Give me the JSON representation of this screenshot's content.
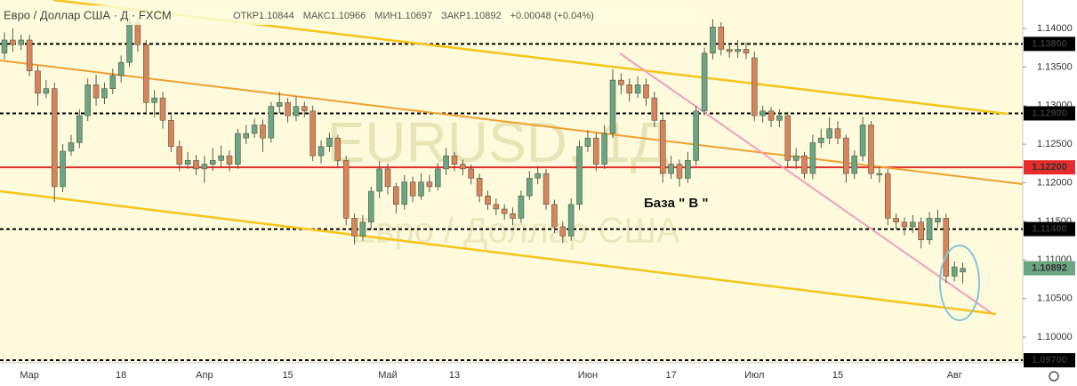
{
  "chart_data": {
    "type": "candlestick",
    "title": "Евро / Доллар США · Д · FXCM",
    "stats": [
      "ОТКР1.10844",
      "МАКС1.10966",
      "МИН1.10697",
      "ЗАКР1.10892",
      "+0.00048 (+0.04%)"
    ],
    "watermark": [
      "EURUSD, 1Д",
      "Евро / Доллар США"
    ],
    "annotation": "База \" В \"",
    "categories": [
      null,
      null,
      null,
      "Мар",
      null,
      null,
      null,
      null,
      null,
      null,
      null,
      null,
      null,
      null,
      "18",
      null,
      null,
      null,
      null,
      null,
      null,
      null,
      null,
      null,
      "Апр",
      null,
      null,
      null,
      null,
      null,
      null,
      null,
      null,
      null,
      "15",
      null,
      null,
      null,
      null,
      null,
      null,
      null,
      null,
      null,
      null,
      null,
      "Май",
      null,
      null,
      null,
      null,
      null,
      null,
      null,
      "13",
      null,
      null,
      null,
      null,
      null,
      null,
      null,
      null,
      null,
      null,
      null,
      null,
      null,
      null,
      null,
      "Июн",
      null,
      null,
      null,
      null,
      null,
      null,
      null,
      null,
      null,
      "17",
      null,
      null,
      null,
      null,
      null,
      null,
      null,
      null,
      null,
      "Июл",
      null,
      null,
      null,
      null,
      null,
      null,
      null,
      null,
      null,
      "15",
      null,
      null,
      null,
      null,
      null,
      null,
      null,
      null,
      null,
      null,
      null,
      null,
      null,
      "Авг",
      null
    ],
    "open": [
      1.1368,
      1.1385,
      1.1379,
      1.1385,
      1.1345,
      1.1316,
      1.1322,
      1.1195,
      1.1241,
      1.1252,
      1.1287,
      1.1327,
      1.131,
      1.1322,
      1.1339,
      1.1356,
      1.1408,
      1.1379,
      1.1304,
      1.131,
      1.1281,
      1.1247,
      1.1224,
      1.1229,
      1.1218,
      1.1224,
      1.1229,
      1.1235,
      1.1224,
      1.1258,
      1.1264,
      1.1275,
      1.1258,
      1.1299,
      1.1304,
      1.1287,
      1.1299,
      1.1293,
      1.1235,
      1.1247,
      1.1258,
      1.1229,
      1.1154,
      1.1131,
      1.1149,
      1.1189,
      1.1218,
      1.1195,
      1.1172,
      1.1201,
      1.1183,
      1.1201,
      1.1195,
      1.1218,
      1.1235,
      1.1224,
      1.1218,
      1.1206,
      1.1183,
      1.1172,
      1.1166,
      1.116,
      1.1154,
      1.1183,
      1.1206,
      1.1212,
      1.1172,
      1.1143,
      1.1131,
      1.1172,
      1.1247,
      1.1258,
      1.1224,
      1.1264,
      1.1333,
      1.1327,
      1.1316,
      1.1327,
      1.131,
      1.1281,
      1.1212,
      1.1224,
      1.1206,
      1.1229,
      1.1293,
      1.1368,
      1.1402,
      1.1373,
      1.137,
      1.1373,
      1.1362,
      1.1287,
      1.1293,
      1.1281,
      1.1287,
      1.1229,
      1.1235,
      1.1212,
      1.1252,
      1.1258,
      1.127,
      1.1258,
      1.1212,
      1.1235,
      1.1275,
      1.121,
      1.1212,
      1.1154,
      1.1149,
      1.1143,
      1.1149,
      1.1126,
      1.1149,
      1.1154,
      1.1079,
      1.10844
    ],
    "high": [
      1.1395,
      1.14,
      1.1392,
      1.1392,
      1.1352,
      1.1333,
      1.133,
      1.125,
      1.1262,
      1.1295,
      1.1335,
      1.134,
      1.133,
      1.1348,
      1.1365,
      1.142,
      1.1415,
      1.1385,
      1.132,
      1.1318,
      1.1288,
      1.1255,
      1.124,
      1.1236,
      1.1235,
      1.1245,
      1.1248,
      1.1242,
      1.127,
      1.1275,
      1.1283,
      1.1282,
      1.1305,
      1.1318,
      1.131,
      1.1312,
      1.1305,
      1.13,
      1.1255,
      1.1265,
      1.1262,
      1.1235,
      1.116,
      1.1158,
      1.1195,
      1.1228,
      1.1225,
      1.12,
      1.121,
      1.1208,
      1.1212,
      1.121,
      1.1226,
      1.1245,
      1.124,
      1.123,
      1.1224,
      1.1212,
      1.119,
      1.118,
      1.1172,
      1.1168,
      1.119,
      1.1215,
      1.1222,
      1.1218,
      1.1178,
      1.115,
      1.118,
      1.1255,
      1.1268,
      1.1265,
      1.1275,
      1.1347,
      1.1342,
      1.1335,
      1.1338,
      1.1335,
      1.1318,
      1.1288,
      1.1235,
      1.123,
      1.124,
      1.13,
      1.1375,
      1.1412,
      1.1408,
      1.138,
      1.1385,
      1.1382,
      1.137,
      1.13,
      1.1298,
      1.1295,
      1.1292,
      1.1245,
      1.124,
      1.1262,
      1.127,
      1.1285,
      1.128,
      1.1262,
      1.1242,
      1.1285,
      1.128,
      1.1222,
      1.1218,
      1.116,
      1.1155,
      1.1158,
      1.1155,
      1.1162,
      1.1165,
      1.116,
      1.1098,
      1.10966
    ],
    "low": [
      1.136,
      1.137,
      1.1372,
      1.1338,
      1.13,
      1.131,
      1.1175,
      1.1188,
      1.1235,
      1.1245,
      1.128,
      1.13,
      1.1302,
      1.1315,
      1.133,
      1.135,
      1.137,
      1.129,
      1.1285,
      1.127,
      1.124,
      1.1215,
      1.1218,
      1.121,
      1.12,
      1.1215,
      1.122,
      1.1215,
      1.1218,
      1.125,
      1.1258,
      1.124,
      1.1252,
      1.129,
      1.1278,
      1.128,
      1.1285,
      1.1228,
      1.1225,
      1.124,
      1.122,
      1.1145,
      1.112,
      1.1125,
      1.114,
      1.118,
      1.1185,
      1.116,
      1.1165,
      1.1175,
      1.1178,
      1.1188,
      1.119,
      1.121,
      1.1215,
      1.121,
      1.1198,
      1.1175,
      1.1165,
      1.1158,
      1.1152,
      1.1145,
      1.1148,
      1.1178,
      1.1198,
      1.1165,
      1.1135,
      1.1122,
      1.1125,
      1.1165,
      1.124,
      1.1215,
      1.1218,
      1.1258,
      1.1315,
      1.1305,
      1.131,
      1.13,
      1.1272,
      1.12,
      1.1205,
      1.1195,
      1.12,
      1.1222,
      1.1288,
      1.136,
      1.1365,
      1.1362,
      1.1362,
      1.136,
      1.128,
      1.1278,
      1.1272,
      1.1272,
      1.122,
      1.1218,
      1.1205,
      1.1205,
      1.1245,
      1.125,
      1.125,
      1.12,
      1.1205,
      1.1228,
      1.1205,
      1.12,
      1.1145,
      1.114,
      1.1132,
      1.1135,
      1.1115,
      1.112,
      1.1142,
      1.107,
      1.1072,
      1.10697
    ],
    "close": [
      1.1385,
      1.1379,
      1.1385,
      1.1345,
      1.1316,
      1.1322,
      1.1195,
      1.1241,
      1.1252,
      1.1287,
      1.1327,
      1.131,
      1.1322,
      1.1339,
      1.1356,
      1.1408,
      1.1379,
      1.1304,
      1.131,
      1.1281,
      1.1247,
      1.1224,
      1.1229,
      1.1218,
      1.1224,
      1.1229,
      1.1235,
      1.1224,
      1.1264,
      1.1264,
      1.1275,
      1.1258,
      1.1299,
      1.1304,
      1.1287,
      1.1299,
      1.1293,
      1.1235,
      1.1247,
      1.1258,
      1.1229,
      1.1154,
      1.1131,
      1.1149,
      1.1189,
      1.1218,
      1.1195,
      1.1172,
      1.1201,
      1.1183,
      1.1201,
      1.1195,
      1.1218,
      1.1235,
      1.1224,
      1.1218,
      1.1206,
      1.1183,
      1.1172,
      1.1166,
      1.116,
      1.1154,
      1.1183,
      1.1206,
      1.1212,
      1.1172,
      1.1143,
      1.1131,
      1.1172,
      1.1247,
      1.1258,
      1.1224,
      1.1264,
      1.1333,
      1.1327,
      1.1316,
      1.1327,
      1.131,
      1.1281,
      1.1212,
      1.1224,
      1.1206,
      1.1229,
      1.1293,
      1.1368,
      1.1402,
      1.1373,
      1.137,
      1.1373,
      1.1368,
      1.1287,
      1.1293,
      1.1281,
      1.1287,
      1.1229,
      1.1235,
      1.1212,
      1.1252,
      1.1258,
      1.127,
      1.1258,
      1.1212,
      1.1235,
      1.1275,
      1.1212,
      1.1212,
      1.1154,
      1.1149,
      1.1143,
      1.1149,
      1.1126,
      1.1154,
      1.1154,
      1.1079,
      1.1091,
      1.10892
    ],
    "up_color": "#6ba583",
    "down_color": "#d8845a",
    "ylim": [
      1.09666,
      1.14369
    ],
    "yticks": [
      {
        "value": 1.1,
        "label": "1.10000"
      },
      {
        "value": 1.105,
        "label": "1.10500"
      },
      {
        "value": 1.11,
        "label": "1.11000"
      },
      {
        "value": 1.115,
        "label": "1.11500"
      },
      {
        "value": 1.12,
        "label": "1.12000"
      },
      {
        "value": 1.125,
        "label": "1.12500"
      },
      {
        "value": 1.13,
        "label": "1.13000"
      },
      {
        "value": 1.135,
        "label": "1.13500"
      },
      {
        "value": 1.14,
        "label": "1.14000"
      }
    ],
    "levels": [
      {
        "value": 1.138,
        "label": "1.13800",
        "color": "#000000",
        "dashed": true
      },
      {
        "value": 1.129,
        "label": "1.12900",
        "color": "#000000",
        "dashed": true
      },
      {
        "value": 1.122,
        "label": "1.12200",
        "color": "#e52b2b",
        "dashed": false
      },
      {
        "value": 1.114,
        "label": "1.11400",
        "color": "#000000",
        "dashed": true
      },
      {
        "value": 1.097,
        "label": "1.09700",
        "color": "#000000",
        "dashed": true
      }
    ],
    "price_marker": {
      "value": 1.10892,
      "label": "1.10892",
      "color": "#6ba583"
    }
  }
}
